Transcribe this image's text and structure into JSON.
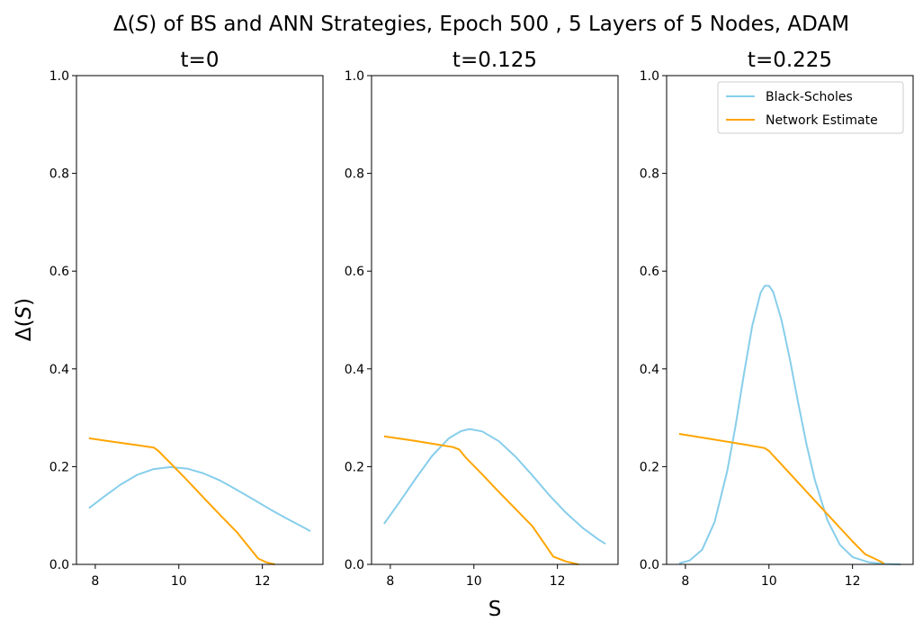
{
  "figure": {
    "suptitle_prefix": "Δ(",
    "suptitle_var": "S",
    "suptitle_suffix": ") of BS and ANN Strategies, Epoch 500 , 5 Layers of 5 Nodes, ADAM",
    "ylabel_prefix": "Δ(",
    "ylabel_var": "S",
    "ylabel_suffix": ")",
    "xlabel": "S"
  },
  "legend": {
    "items": [
      "Black-Scholes",
      "Network Estimate"
    ],
    "location": "upper right of third panel"
  },
  "colors": {
    "bs": "#87CEEB",
    "net": "#FFA500",
    "axis": "#000000"
  },
  "chart_data": [
    {
      "type": "line",
      "title": "t=0",
      "xlabel": "",
      "ylabel": "Δ(S)",
      "xlim": [
        7.55,
        13.45
      ],
      "ylim": [
        0,
        1
      ],
      "xticks": [
        8,
        10,
        12
      ],
      "yticks": [
        0.0,
        0.2,
        0.4,
        0.6,
        0.8,
        1.0
      ],
      "series": [
        {
          "name": "Black-Scholes",
          "x": [
            7.85,
            8.2,
            8.6,
            9.0,
            9.4,
            9.8,
            10.2,
            10.6,
            11.0,
            11.4,
            11.8,
            12.2,
            12.6,
            13.0,
            13.15
          ],
          "y": [
            0.115,
            0.138,
            0.163,
            0.183,
            0.195,
            0.199,
            0.196,
            0.186,
            0.171,
            0.152,
            0.132,
            0.112,
            0.093,
            0.075,
            0.068
          ]
        },
        {
          "name": "Network Estimate",
          "x": [
            7.85,
            8.5,
            9.0,
            9.4,
            9.5,
            9.8,
            10.2,
            10.6,
            11.0,
            11.4,
            11.9,
            12.1,
            12.3
          ],
          "y": [
            0.258,
            0.25,
            0.244,
            0.239,
            0.233,
            0.207,
            0.172,
            0.136,
            0.1,
            0.065,
            0.012,
            0.004,
            0.0
          ]
        }
      ]
    },
    {
      "type": "line",
      "title": "t=0.125",
      "xlabel": "S",
      "ylabel": "",
      "xlim": [
        7.55,
        13.45
      ],
      "ylim": [
        0,
        1
      ],
      "xticks": [
        8,
        10,
        12
      ],
      "yticks": [
        0.0,
        0.2,
        0.4,
        0.6,
        0.8,
        1.0
      ],
      "series": [
        {
          "name": "Black-Scholes",
          "x": [
            7.85,
            8.2,
            8.6,
            9.0,
            9.4,
            9.7,
            9.9,
            10.2,
            10.6,
            11.0,
            11.4,
            11.8,
            12.2,
            12.6,
            13.0,
            13.15
          ],
          "y": [
            0.083,
            0.125,
            0.175,
            0.222,
            0.258,
            0.273,
            0.277,
            0.272,
            0.252,
            0.22,
            0.182,
            0.142,
            0.106,
            0.075,
            0.05,
            0.042
          ]
        },
        {
          "name": "Network Estimate",
          "x": [
            7.85,
            8.5,
            9.0,
            9.5,
            9.65,
            9.8,
            10.2,
            10.6,
            11.0,
            11.4,
            11.9,
            12.2,
            12.5
          ],
          "y": [
            0.262,
            0.254,
            0.247,
            0.24,
            0.235,
            0.219,
            0.184,
            0.148,
            0.113,
            0.078,
            0.016,
            0.006,
            0.0
          ]
        }
      ]
    },
    {
      "type": "line",
      "title": "t=0.225",
      "xlabel": "",
      "ylabel": "",
      "xlim": [
        7.55,
        13.45
      ],
      "ylim": [
        0,
        1
      ],
      "xticks": [
        8,
        10,
        12
      ],
      "yticks": [
        0.0,
        0.2,
        0.4,
        0.6,
        0.8,
        1.0
      ],
      "series": [
        {
          "name": "Black-Scholes",
          "x": [
            7.85,
            8.1,
            8.4,
            8.7,
            9.0,
            9.2,
            9.4,
            9.6,
            9.8,
            9.9,
            10.0,
            10.1,
            10.3,
            10.5,
            10.7,
            10.9,
            11.1,
            11.4,
            11.7,
            12.0,
            12.4,
            12.8,
            13.15
          ],
          "y": [
            0.002,
            0.008,
            0.03,
            0.087,
            0.19,
            0.283,
            0.389,
            0.488,
            0.556,
            0.57,
            0.57,
            0.558,
            0.5,
            0.42,
            0.33,
            0.245,
            0.172,
            0.09,
            0.04,
            0.015,
            0.004,
            0.001,
            0.0
          ]
        },
        {
          "name": "Network Estimate",
          "x": [
            7.85,
            8.5,
            9.0,
            9.5,
            9.9,
            10.0,
            10.4,
            10.8,
            11.2,
            11.6,
            12.0,
            12.3,
            12.6,
            12.75
          ],
          "y": [
            0.267,
            0.258,
            0.251,
            0.244,
            0.238,
            0.232,
            0.195,
            0.158,
            0.121,
            0.084,
            0.047,
            0.021,
            0.009,
            0.002
          ]
        }
      ]
    }
  ]
}
